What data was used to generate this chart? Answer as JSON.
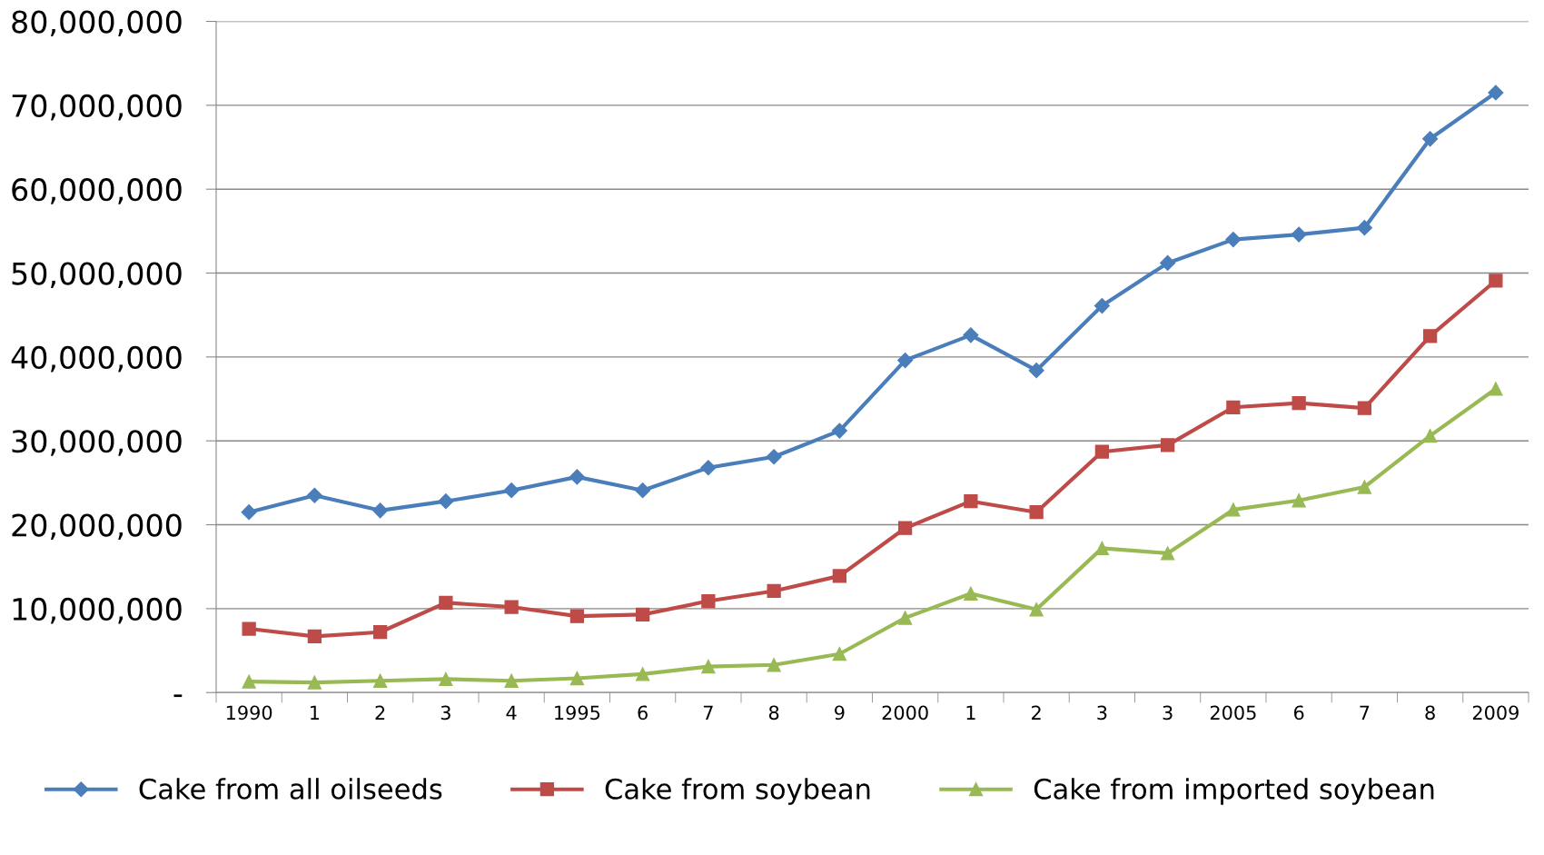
{
  "chart_data": {
    "type": "line",
    "categories": [
      "1990",
      "1",
      "2",
      "3",
      "4",
      "1995",
      "6",
      "7",
      "8",
      "9",
      "2000",
      "1",
      "2",
      "3",
      "3",
      "2005",
      "6",
      "7",
      "8",
      "2009"
    ],
    "series": [
      {
        "name": "Cake from all oilseeds",
        "color": "#4a7ebb",
        "marker": "diamond",
        "values": [
          21500000,
          23500000,
          21700000,
          22800000,
          24100000,
          25700000,
          24100000,
          26800000,
          28100000,
          31200000,
          39600000,
          42600000,
          38400000,
          46100000,
          51200000,
          54000000,
          54600000,
          55400000,
          66000000,
          71500000
        ]
      },
      {
        "name": "Cake from soybean",
        "color": "#be4b48",
        "marker": "square",
        "values": [
          7600000,
          6700000,
          7200000,
          10700000,
          10200000,
          9100000,
          9300000,
          10900000,
          12100000,
          13900000,
          19600000,
          22800000,
          21500000,
          28700000,
          29500000,
          34000000,
          34500000,
          33900000,
          42500000,
          49100000
        ]
      },
      {
        "name": "Cake from imported soybean",
        "color": "#98b954",
        "marker": "triangle",
        "values": [
          1300000,
          1200000,
          1400000,
          1600000,
          1400000,
          1700000,
          2200000,
          3100000,
          3300000,
          4600000,
          8900000,
          11800000,
          9900000,
          17200000,
          16600000,
          21800000,
          22900000,
          24500000,
          30600000,
          36200000
        ]
      }
    ],
    "ylim": [
      0,
      80000000
    ],
    "yticks": [
      {
        "value": 0,
        "label": "-"
      },
      {
        "value": 10000000,
        "label": "10,000,000"
      },
      {
        "value": 20000000,
        "label": "20,000,000"
      },
      {
        "value": 30000000,
        "label": "30,000,000"
      },
      {
        "value": 40000000,
        "label": "40,000,000"
      },
      {
        "value": 50000000,
        "label": "50,000,000"
      },
      {
        "value": 60000000,
        "label": "60,000,000"
      },
      {
        "value": 70000000,
        "label": "70,000,000"
      },
      {
        "value": 80000000,
        "label": "80,000,000"
      }
    ],
    "grid": "y",
    "legend": "bottom",
    "line_style": "solid"
  }
}
